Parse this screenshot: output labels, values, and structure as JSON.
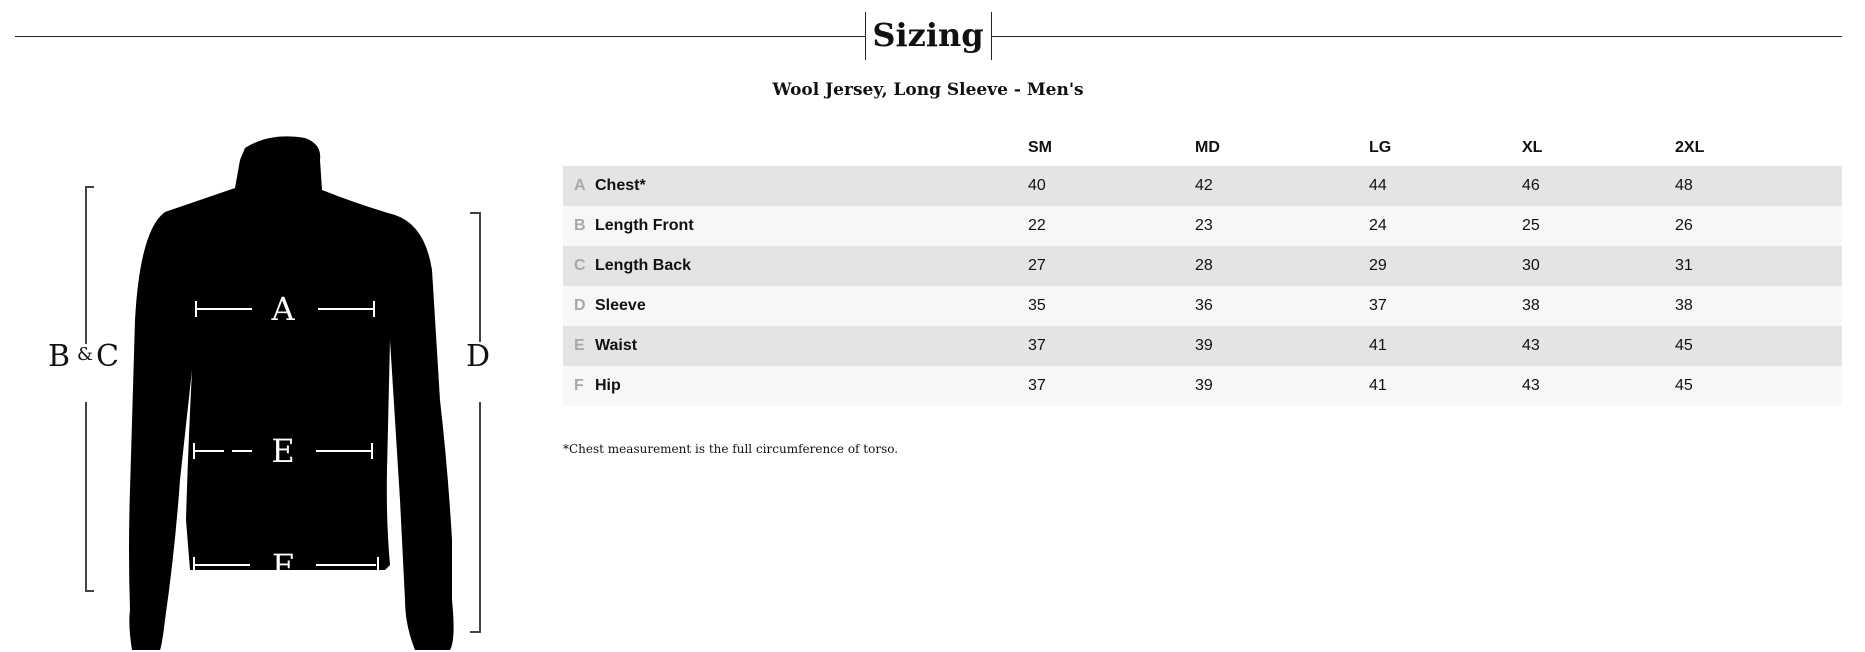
{
  "header": {
    "title": "Sizing"
  },
  "product": {
    "name": "Wool Jersey, Long Sleeve - Men's"
  },
  "diagram": {
    "labels": {
      "chest": "A",
      "waist": "E",
      "hip": "F",
      "length": "B",
      "amp": "&",
      "length_back": "C",
      "sleeve": "D"
    }
  },
  "table": {
    "columns": [
      "SM",
      "MD",
      "LG",
      "XL",
      "2XL"
    ],
    "rows": [
      {
        "letter": "A",
        "label": "Chest*",
        "values": [
          "40",
          "42",
          "44",
          "46",
          "48"
        ]
      },
      {
        "letter": "B",
        "label": "Length Front",
        "values": [
          "22",
          "23",
          "24",
          "25",
          "26"
        ]
      },
      {
        "letter": "C",
        "label": "Length Back",
        "values": [
          "27",
          "28",
          "29",
          "30",
          "31"
        ]
      },
      {
        "letter": "D",
        "label": "Sleeve",
        "values": [
          "35",
          "36",
          "37",
          "38",
          "38"
        ]
      },
      {
        "letter": "E",
        "label": "Waist",
        "values": [
          "37",
          "39",
          "41",
          "43",
          "45"
        ]
      },
      {
        "letter": "F",
        "label": "Hip",
        "values": [
          "37",
          "39",
          "41",
          "43",
          "45"
        ]
      }
    ]
  },
  "footnote": "*Chest measurement is the full circumference of torso."
}
